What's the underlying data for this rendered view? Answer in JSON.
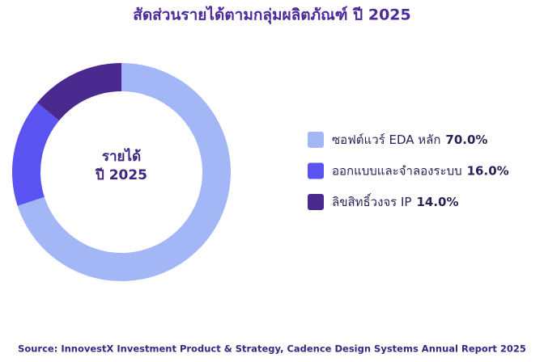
{
  "chart_data": {
    "type": "pie",
    "title": "สัดส่วนรายได้ตามกลุ่มผลิตภัณฑ์ ปี 2025",
    "center_label": [
      "รายได้",
      "ปี 2025"
    ],
    "categories": [
      "ซอฟต์แวร์ EDA หลัก",
      "ออกแบบและจำลองระบบ",
      "ลิขสิทธิ์วงจร IP"
    ],
    "values": [
      70.0,
      16.0,
      14.0
    ],
    "value_labels": [
      "70.0%",
      "16.0%",
      "14.0%"
    ],
    "colors": [
      "#a3b7f7",
      "#5b52f2",
      "#4b2a8f"
    ],
    "source": "Source: InnovestX Investment Product & Strategy, Cadence Design Systems Annual Report 2025"
  }
}
